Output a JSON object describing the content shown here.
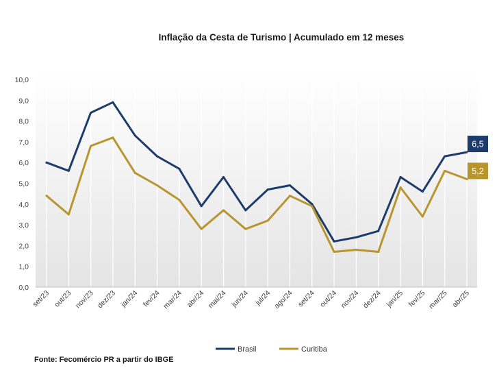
{
  "chart_data": {
    "type": "line",
    "title": "Inflação da Cesta de Turismo | Acumulado em 12 meses",
    "categories": [
      "set/23",
      "out/23",
      "nov/23",
      "dez/23",
      "jan/24",
      "fev/24",
      "mar/24",
      "abr/24",
      "mai/24",
      "jun/24",
      "jul/24",
      "ago/24",
      "set/24",
      "out/24",
      "nov/24",
      "dez/24",
      "jan/25",
      "fev/25",
      "mar/25",
      "abr/25"
    ],
    "yticks": [
      "0,0",
      "1,0",
      "2,0",
      "3,0",
      "4,0",
      "5,0",
      "6,0",
      "7,0",
      "8,0",
      "9,0",
      "10,0"
    ],
    "ylim": [
      0,
      10
    ],
    "grid": "vertical",
    "legend": "bottom",
    "series": [
      {
        "name": "Brasil",
        "color": "#1d3c6b",
        "values": [
          6.0,
          5.6,
          8.4,
          8.9,
          7.3,
          6.3,
          5.7,
          3.9,
          5.3,
          3.7,
          4.7,
          4.9,
          4.0,
          2.2,
          2.4,
          2.7,
          5.3,
          4.6,
          6.3,
          6.5
        ],
        "end_label": "6,5"
      },
      {
        "name": "Curitiba",
        "color": "#b8952f",
        "values": [
          4.4,
          3.5,
          6.8,
          7.2,
          5.5,
          4.9,
          4.2,
          2.8,
          3.7,
          2.8,
          3.2,
          4.4,
          3.9,
          1.7,
          1.8,
          1.7,
          4.8,
          3.4,
          5.6,
          5.2
        ],
        "end_label": "5,2"
      }
    ]
  },
  "source": "Fonte: Fecomércio PR a partir do IBGE"
}
